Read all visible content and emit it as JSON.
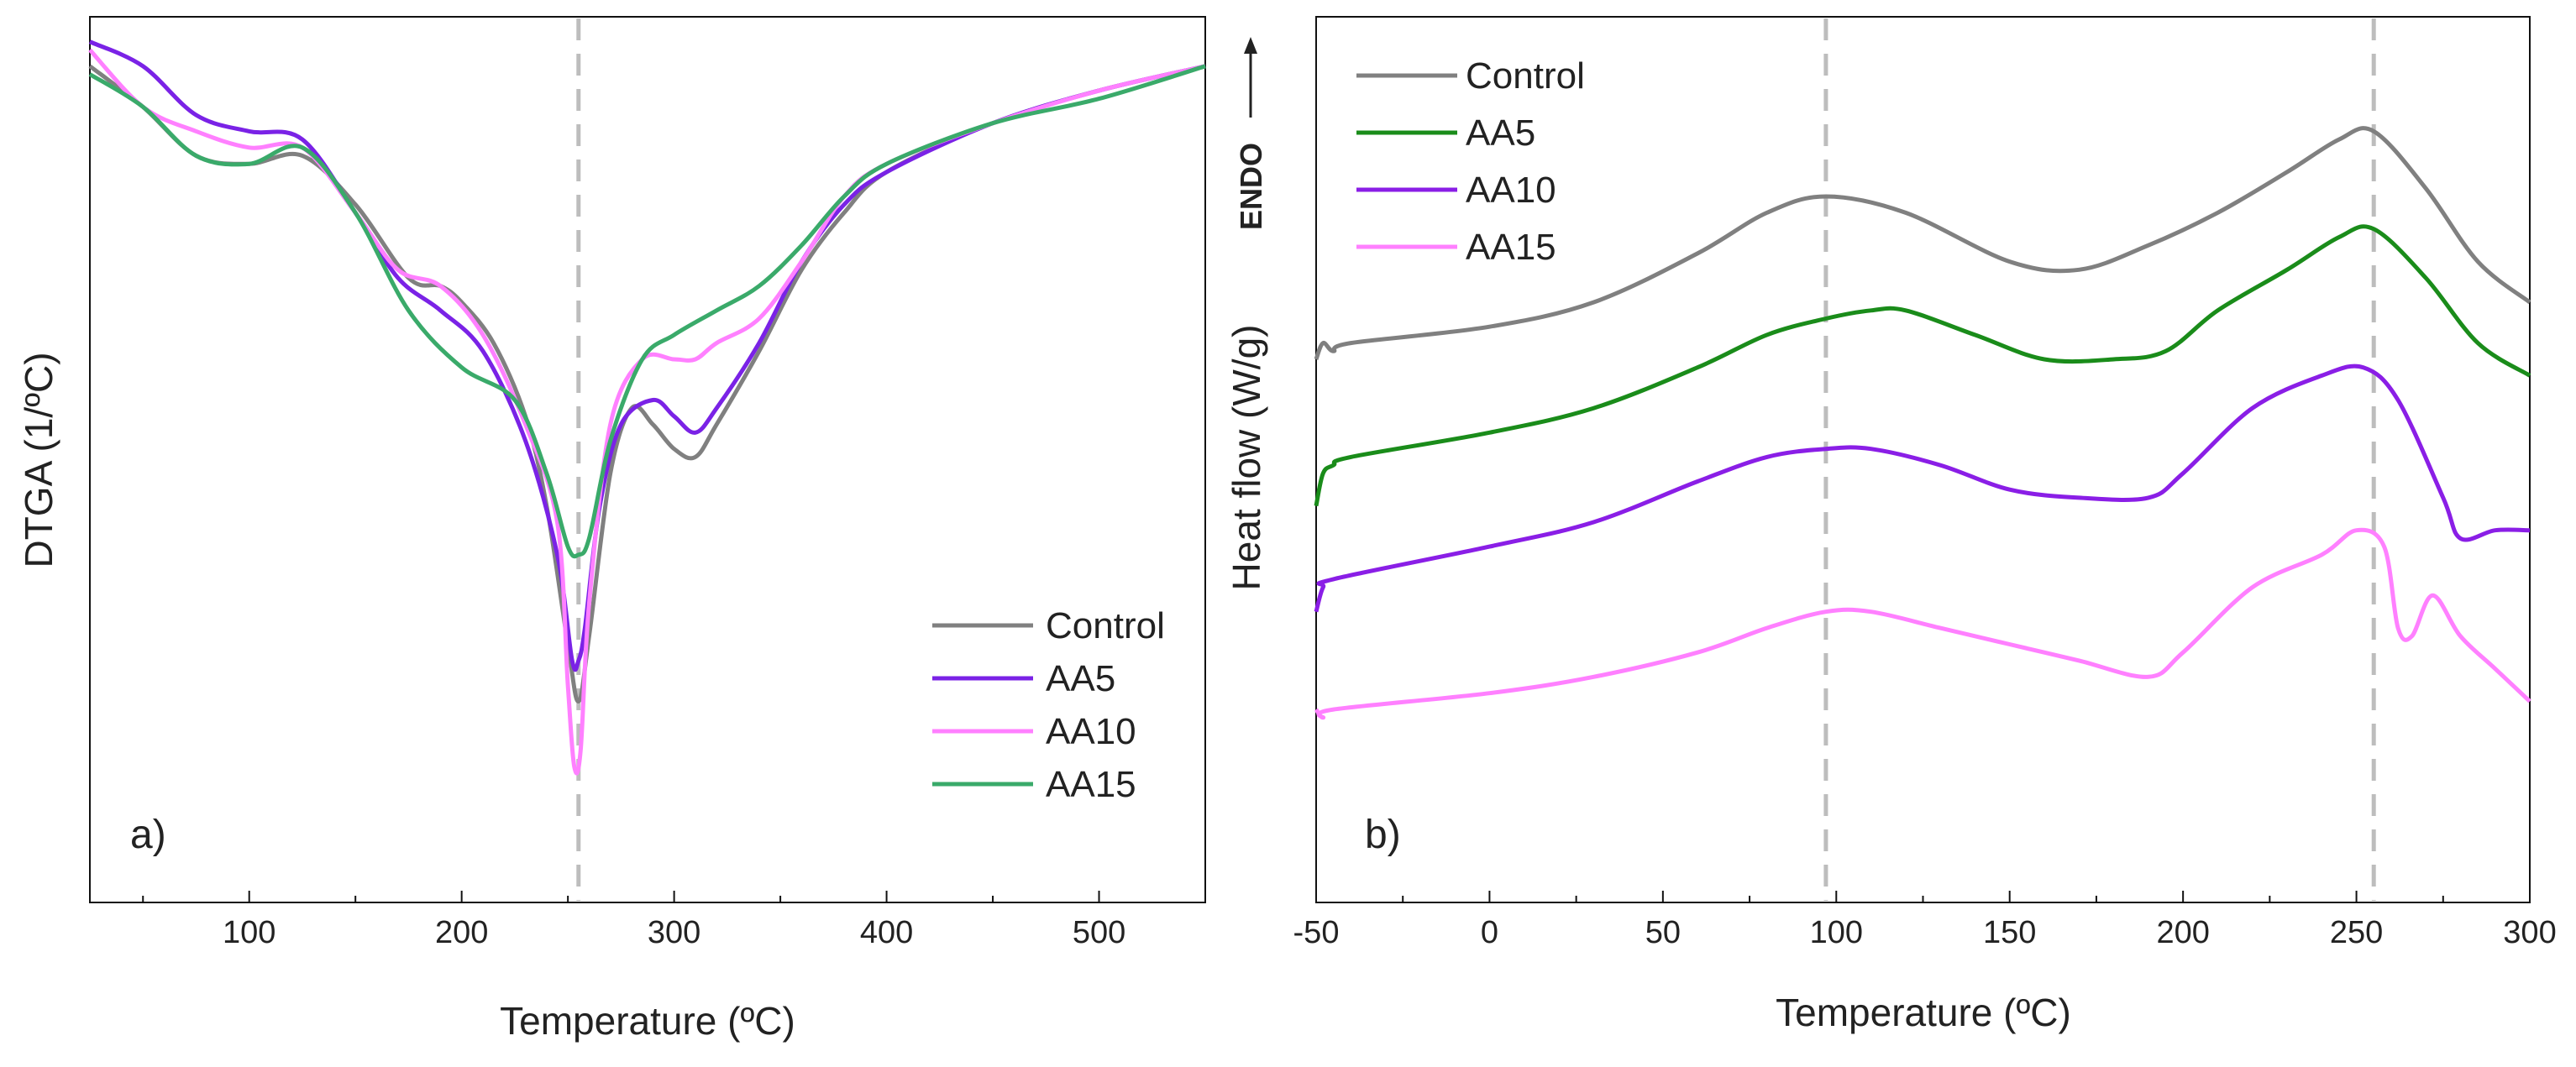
{
  "chart_data": [
    {
      "type": "line",
      "panel_label": "a)",
      "xlabel": "Temperature (ºC)",
      "ylabel": "DTGA (1/ºC)",
      "xlim": [
        25,
        550
      ],
      "xticks": [
        100,
        200,
        300,
        400,
        500
      ],
      "ylim": [
        0,
        1
      ],
      "y_values_normalized": true,
      "grid": false,
      "legend": "bottom-right",
      "reference_lines_x": [
        255
      ],
      "series": [
        {
          "name": "Control",
          "color": "#808080",
          "x": [
            25,
            50,
            75,
            100,
            125,
            150,
            175,
            190,
            200,
            215,
            230,
            240,
            250,
            255,
            260,
            270,
            280,
            290,
            300,
            310,
            320,
            340,
            360,
            380,
            400,
            450,
            500,
            550
          ],
          "y": [
            0.96,
            0.91,
            0.85,
            0.84,
            0.85,
            0.79,
            0.7,
            0.69,
            0.67,
            0.62,
            0.53,
            0.42,
            0.25,
            0.18,
            0.26,
            0.46,
            0.54,
            0.52,
            0.49,
            0.48,
            0.52,
            0.61,
            0.71,
            0.78,
            0.83,
            0.89,
            0.93,
            0.96
          ]
        },
        {
          "name": "AA5",
          "color": "#7a22e6",
          "x": [
            25,
            50,
            75,
            100,
            125,
            150,
            170,
            190,
            210,
            230,
            245,
            252,
            255,
            258,
            265,
            275,
            290,
            300,
            310,
            320,
            340,
            360,
            380,
            400,
            450,
            500,
            550
          ],
          "y": [
            0.99,
            0.96,
            0.9,
            0.88,
            0.87,
            0.78,
            0.7,
            0.66,
            0.61,
            0.5,
            0.36,
            0.23,
            0.23,
            0.27,
            0.42,
            0.52,
            0.55,
            0.53,
            0.51,
            0.54,
            0.62,
            0.72,
            0.79,
            0.83,
            0.89,
            0.93,
            0.96
          ]
        },
        {
          "name": "AA10",
          "color": "#ff80ff",
          "x": [
            25,
            50,
            75,
            100,
            125,
            150,
            170,
            190,
            210,
            230,
            245,
            250,
            253,
            256,
            260,
            270,
            285,
            300,
            310,
            320,
            340,
            360,
            380,
            400,
            450,
            500,
            550
          ],
          "y": [
            0.98,
            0.91,
            0.88,
            0.86,
            0.86,
            0.78,
            0.71,
            0.69,
            0.63,
            0.52,
            0.4,
            0.2,
            0.1,
            0.12,
            0.3,
            0.52,
            0.6,
            0.6,
            0.6,
            0.62,
            0.65,
            0.72,
            0.8,
            0.84,
            0.89,
            0.93,
            0.96
          ]
        },
        {
          "name": "AA15",
          "color": "#3aaa6a",
          "x": [
            25,
            50,
            75,
            100,
            125,
            150,
            175,
            200,
            225,
            240,
            250,
            255,
            260,
            270,
            285,
            300,
            320,
            340,
            360,
            380,
            400,
            450,
            500,
            550
          ],
          "y": [
            0.95,
            0.91,
            0.85,
            0.84,
            0.86,
            0.78,
            0.66,
            0.59,
            0.55,
            0.46,
            0.37,
            0.36,
            0.38,
            0.5,
            0.6,
            0.63,
            0.66,
            0.69,
            0.74,
            0.8,
            0.84,
            0.89,
            0.92,
            0.96
          ]
        }
      ]
    },
    {
      "type": "line",
      "panel_label": "b)",
      "xlabel": "Temperature (ºC)",
      "ylabel": "Heat flow (W/g)",
      "endo_label": "ENDO",
      "xlim": [
        -50,
        300
      ],
      "xticks": [
        -50,
        0,
        50,
        100,
        150,
        200,
        250,
        300
      ],
      "xtick_labels": [
        "-50",
        "0",
        "50",
        "100",
        "150",
        "200",
        "250",
        "300"
      ],
      "ylim": [
        0,
        1
      ],
      "y_values_normalized": true,
      "grid": false,
      "legend": "top-left",
      "reference_lines_x": [
        97,
        255
      ],
      "series": [
        {
          "name": "Control",
          "color": "#808080",
          "x": [
            -50,
            -48,
            -45,
            -40,
            0,
            30,
            60,
            80,
            97,
            120,
            150,
            170,
            190,
            210,
            230,
            245,
            255,
            270,
            285,
            300
          ],
          "y": [
            0.6,
            0.62,
            0.61,
            0.62,
            0.64,
            0.67,
            0.73,
            0.78,
            0.8,
            0.78,
            0.72,
            0.71,
            0.74,
            0.78,
            0.83,
            0.87,
            0.88,
            0.81,
            0.72,
            0.67
          ]
        },
        {
          "name": "AA5",
          "color": "#1a8c1a",
          "x": [
            -50,
            -48,
            -45,
            -40,
            0,
            30,
            60,
            80,
            97,
            110,
            120,
            140,
            160,
            180,
            195,
            210,
            230,
            245,
            255,
            270,
            285,
            300
          ],
          "y": [
            0.42,
            0.46,
            0.47,
            0.48,
            0.51,
            0.54,
            0.59,
            0.63,
            0.65,
            0.66,
            0.66,
            0.63,
            0.6,
            0.6,
            0.61,
            0.66,
            0.71,
            0.75,
            0.76,
            0.7,
            0.62,
            0.58
          ]
        },
        {
          "name": "AA10",
          "color": "#8a1ee6",
          "x": [
            -50,
            -48,
            -45,
            0,
            30,
            60,
            80,
            97,
            110,
            130,
            150,
            170,
            190,
            200,
            220,
            240,
            252,
            262,
            275,
            280,
            290,
            300
          ],
          "y": [
            0.29,
            0.32,
            0.33,
            0.37,
            0.4,
            0.45,
            0.48,
            0.49,
            0.49,
            0.47,
            0.44,
            0.43,
            0.43,
            0.46,
            0.54,
            0.58,
            0.59,
            0.55,
            0.43,
            0.38,
            0.39,
            0.39
          ]
        },
        {
          "name": "AA15",
          "color": "#ff80ff",
          "x": [
            -50,
            -48,
            -45,
            0,
            30,
            60,
            80,
            97,
            110,
            130,
            150,
            170,
            190,
            200,
            220,
            240,
            250,
            258,
            262,
            266,
            272,
            280,
            290,
            300
          ],
          "y": [
            0.17,
            0.16,
            0.17,
            0.19,
            0.21,
            0.24,
            0.27,
            0.29,
            0.29,
            0.27,
            0.25,
            0.23,
            0.21,
            0.24,
            0.32,
            0.36,
            0.39,
            0.37,
            0.27,
            0.26,
            0.31,
            0.26,
            0.22,
            0.18
          ]
        }
      ]
    }
  ]
}
